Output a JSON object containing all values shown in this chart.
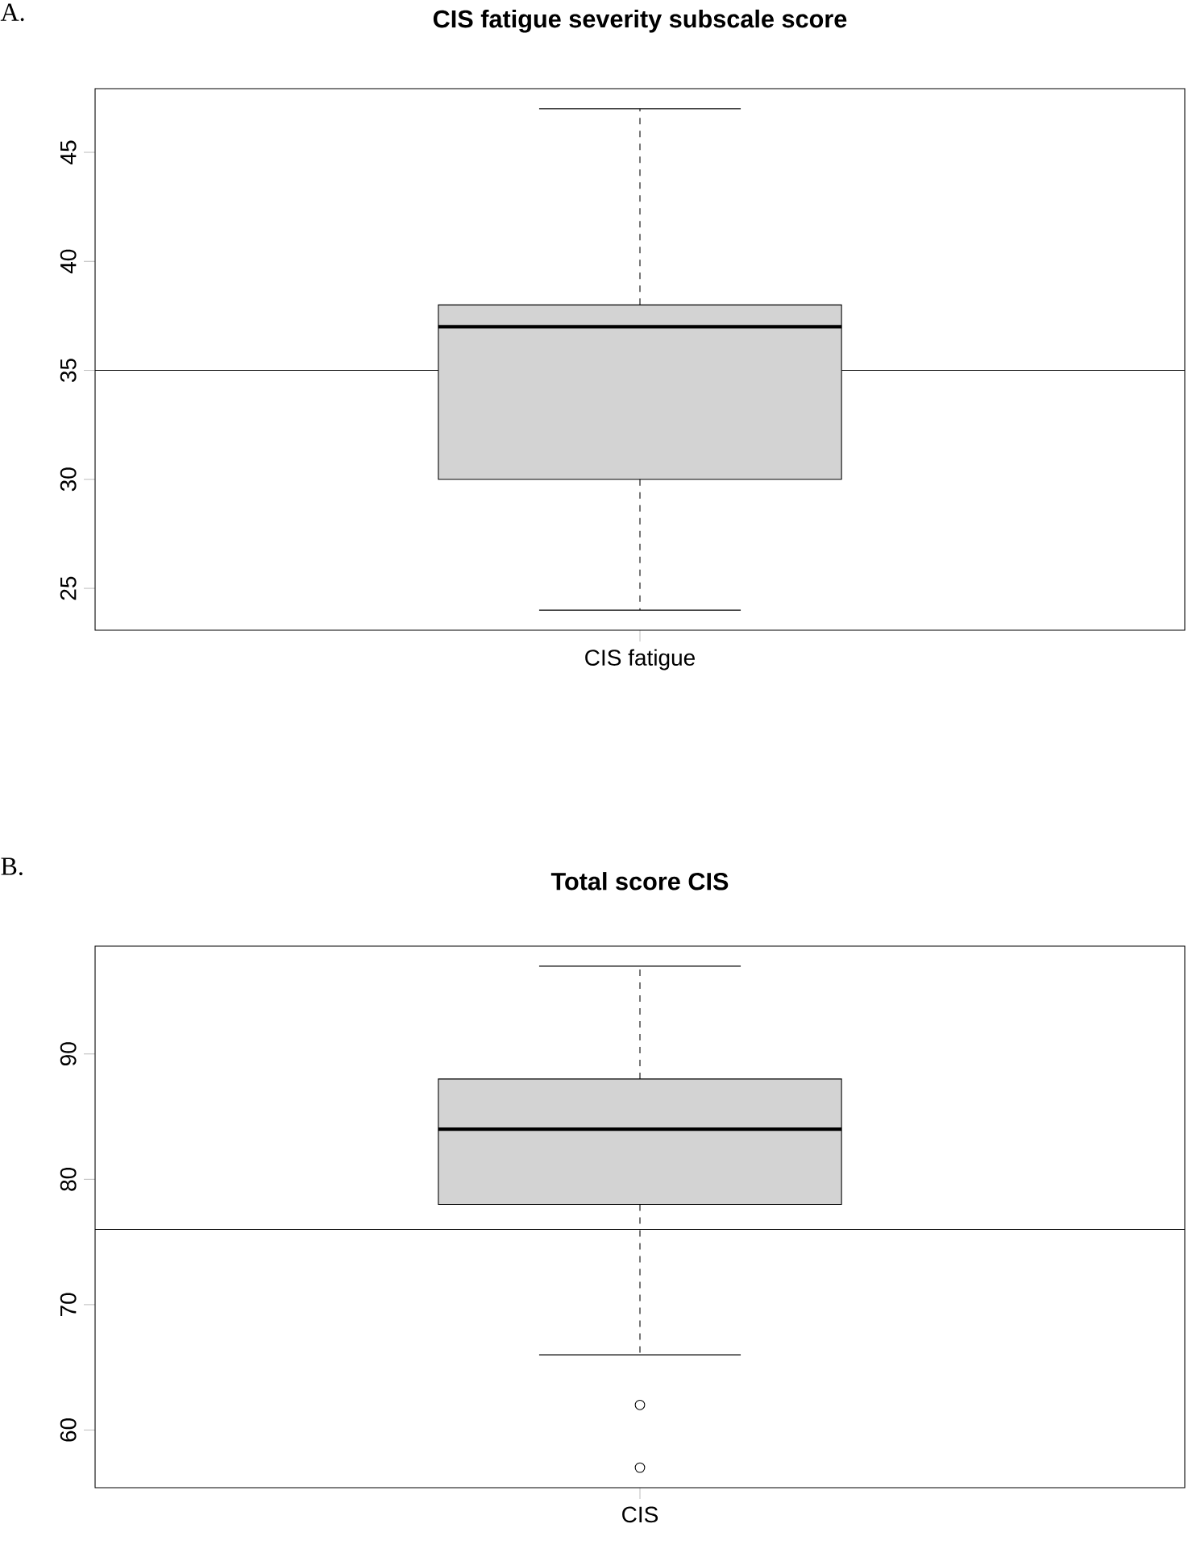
{
  "chart_data": [
    {
      "type": "box",
      "title": "CIS fatigue severity subscale score",
      "annotations": [
        "A."
      ],
      "categories": [
        "CIS fatigue"
      ],
      "series": [
        {
          "color": "#d3d3d3",
          "boxes": [
            {
              "low": 24,
              "q1": 30,
              "median": 37,
              "q3": 38,
              "high": 47
            }
          ]
        }
      ],
      "ylim": [
        23.08,
        47.92
      ],
      "yticks": [
        25,
        30,
        35,
        40,
        45
      ],
      "ref_lines": [
        {
          "axis": "y",
          "value": 35
        }
      ]
    },
    {
      "type": "box",
      "title": "Total score CIS",
      "annotations": [
        "B."
      ],
      "categories": [
        "CIS"
      ],
      "series": [
        {
          "color": "#d3d3d3",
          "boxes": [
            {
              "low": 66,
              "q1": 78,
              "median": 84,
              "q3": 88,
              "high": 97,
              "outliers": [
                62,
                57
              ]
            }
          ]
        }
      ],
      "ylim": [
        55.4,
        98.6
      ],
      "yticks": [
        60,
        70,
        80,
        90
      ],
      "ref_lines": [
        {
          "axis": "y",
          "value": 76
        }
      ]
    }
  ]
}
